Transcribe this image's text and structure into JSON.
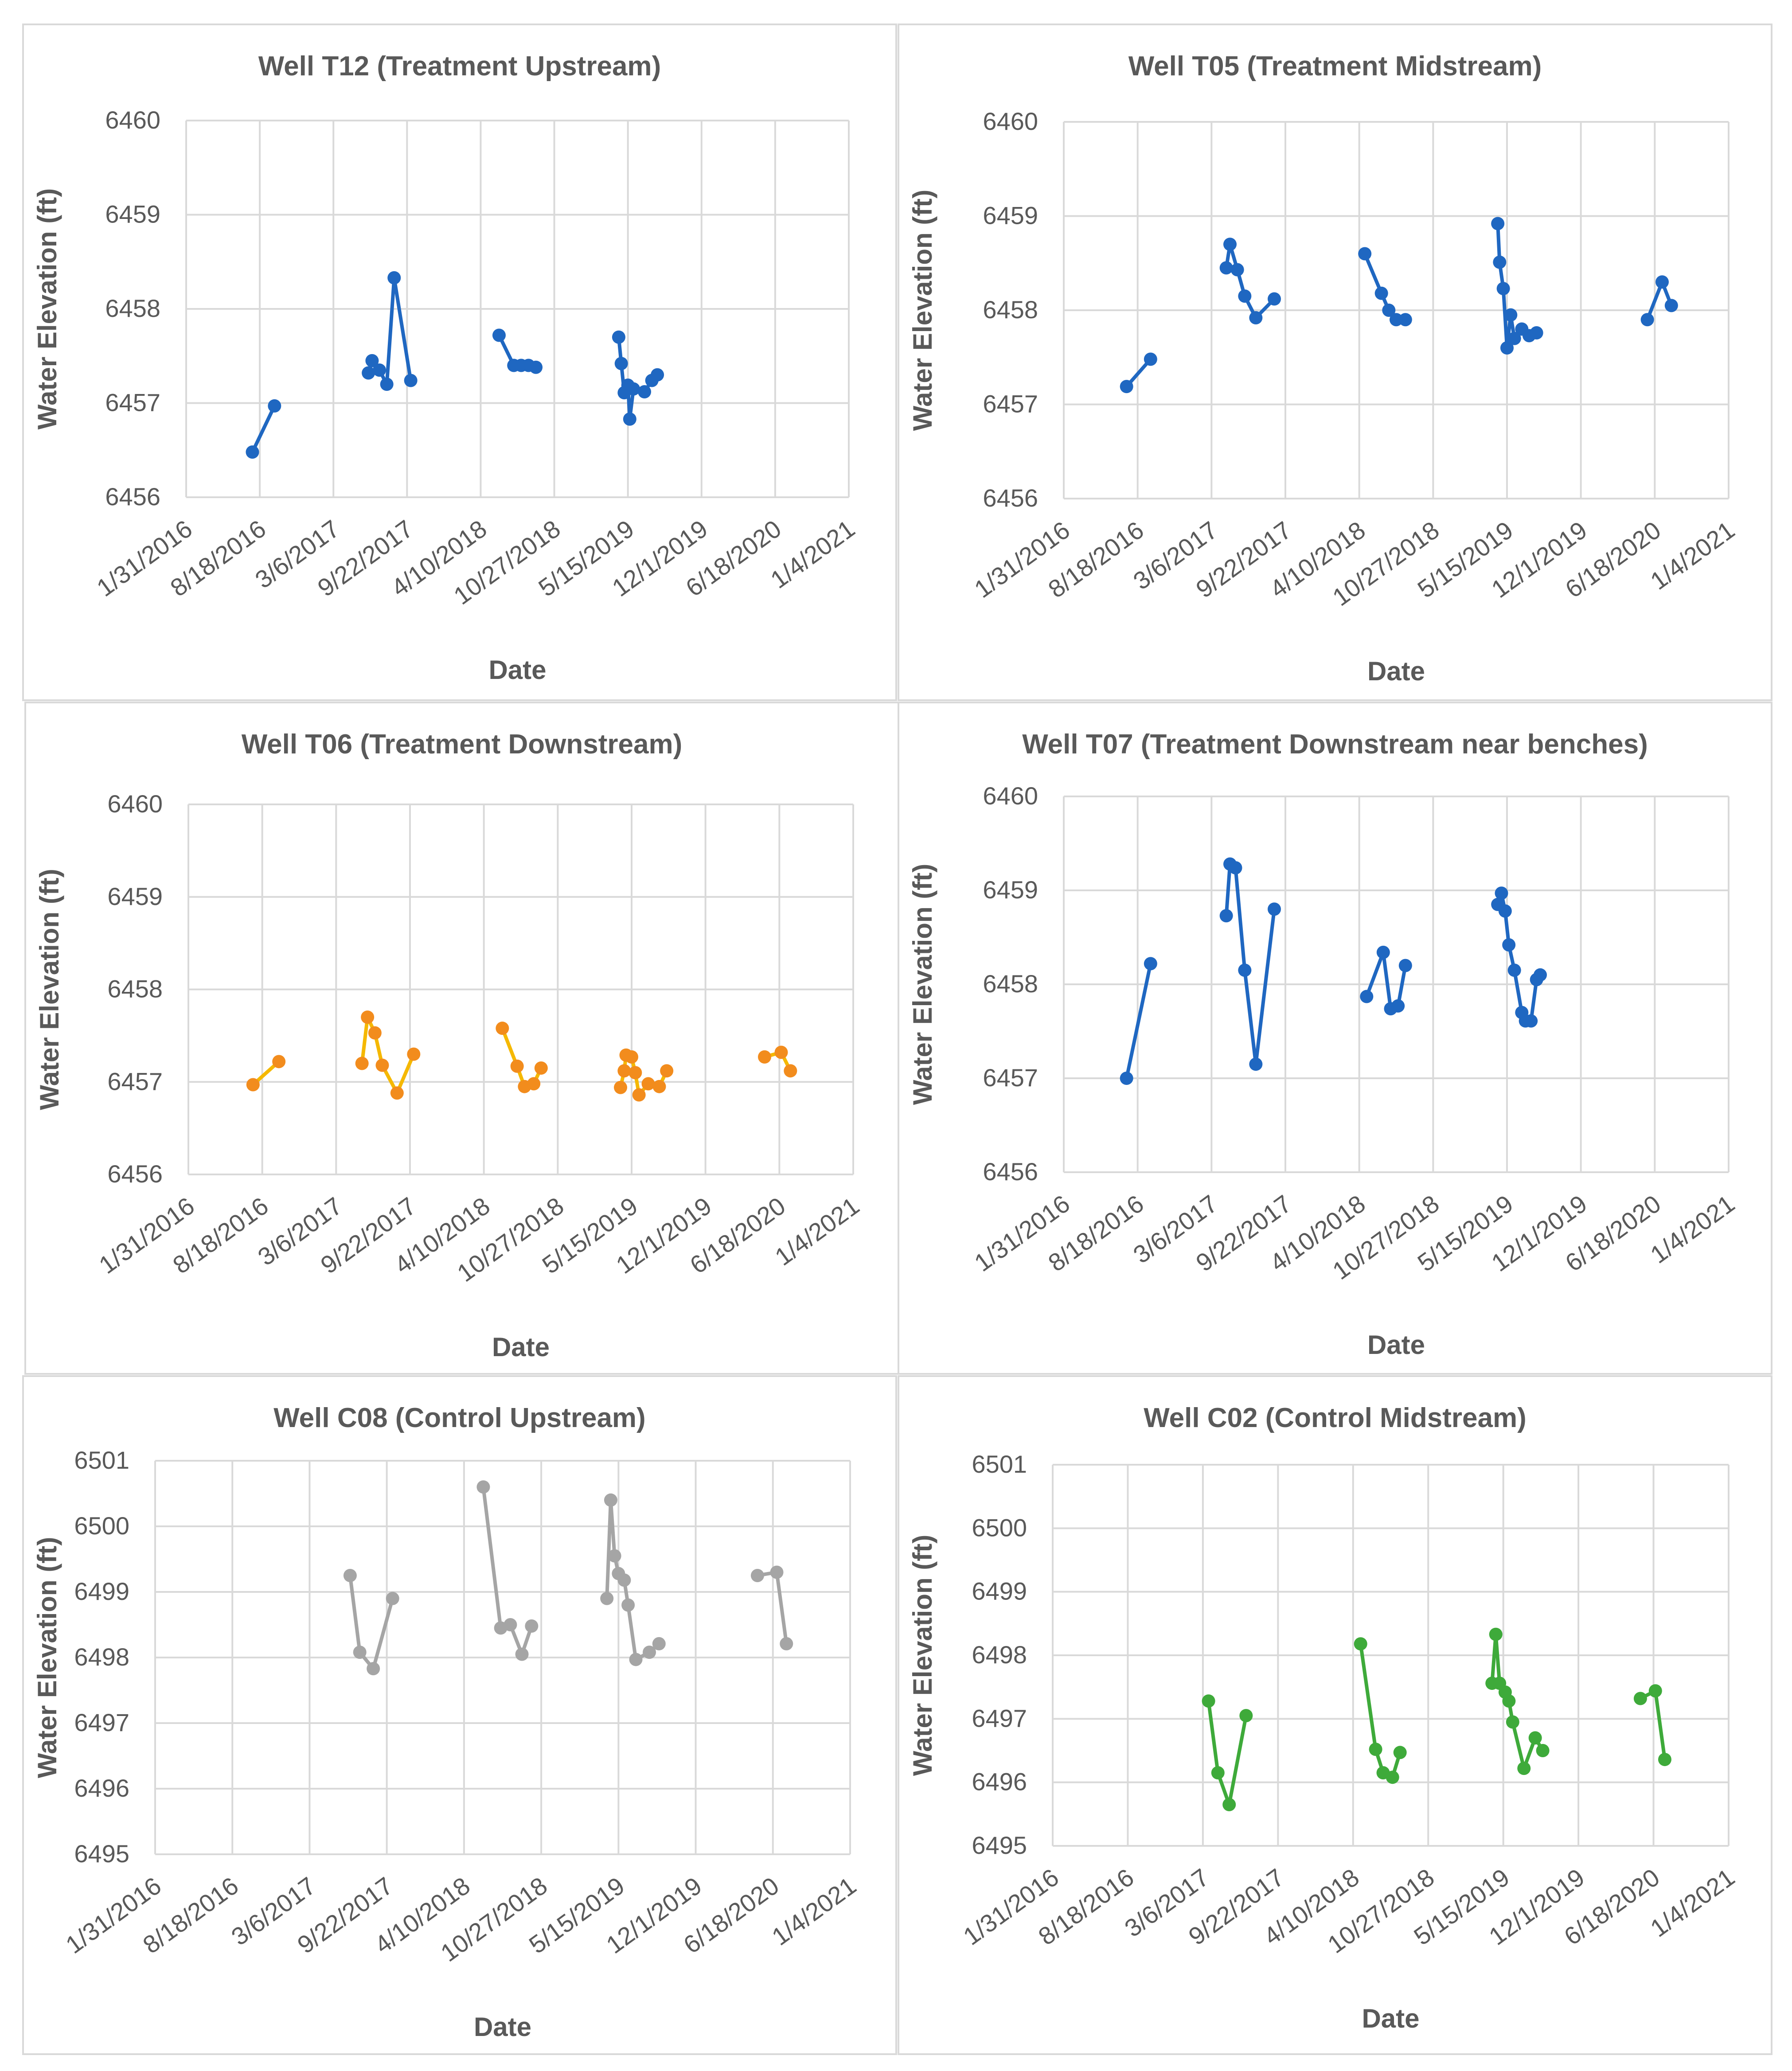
{
  "x_tick_labels": [
    "1/31/2016",
    "8/18/2016",
    "3/6/2017",
    "9/22/2017",
    "4/10/2018",
    "10/27/2018",
    "5/15/2019",
    "12/1/2019",
    "6/18/2020",
    "1/4/2021"
  ],
  "chart_data": [
    {
      "type": "line",
      "title": "Well T12 (Treatment Upstream)",
      "xlabel": "Date",
      "ylabel": "Water Elevation (ft)",
      "xlim": [
        0,
        1800
      ],
      "ylim": [
        6456,
        6460
      ],
      "yticks": [
        6456,
        6457,
        6458,
        6459,
        6460
      ],
      "color": "#1f67c1",
      "segments": [
        [
          [
            180,
            6456.48
          ],
          [
            240,
            6456.97
          ]
        ],
        [
          [
            495,
            6457.32
          ],
          [
            505,
            6457.45
          ],
          [
            525,
            6457.35
          ],
          [
            545,
            6457.2
          ],
          [
            565,
            6458.33
          ],
          [
            610,
            6457.24
          ]
        ],
        [
          [
            850,
            6457.72
          ],
          [
            890,
            6457.4
          ],
          [
            910,
            6457.4
          ],
          [
            930,
            6457.4
          ],
          [
            950,
            6457.38
          ]
        ],
        [
          [
            1175,
            6457.7
          ],
          [
            1182,
            6457.42
          ],
          [
            1190,
            6457.11
          ],
          [
            1200,
            6457.19
          ],
          [
            1205,
            6456.83
          ],
          [
            1215,
            6457.15
          ],
          [
            1245,
            6457.12
          ],
          [
            1265,
            6457.24
          ],
          [
            1280,
            6457.3
          ]
        ]
      ]
    },
    {
      "type": "line",
      "title": "Well T05 (Treatment Midstream)",
      "xlabel": "Date",
      "ylabel": "Water Elevation (ft)",
      "xlim": [
        0,
        1800
      ],
      "ylim": [
        6456,
        6460
      ],
      "yticks": [
        6456,
        6457,
        6458,
        6459,
        6460
      ],
      "color": "#1f67c1",
      "segments": [
        [
          [
            170,
            6457.19
          ],
          [
            235,
            6457.48
          ]
        ],
        [
          [
            440,
            6458.45
          ],
          [
            450,
            6458.7
          ],
          [
            470,
            6458.43
          ],
          [
            490,
            6458.15
          ],
          [
            520,
            6457.92
          ],
          [
            570,
            6458.12
          ]
        ],
        [
          [
            815,
            6458.6
          ],
          [
            860,
            6458.18
          ],
          [
            880,
            6458.0
          ],
          [
            900,
            6457.9
          ],
          [
            925,
            6457.9
          ]
        ],
        [
          [
            1175,
            6458.92
          ],
          [
            1180,
            6458.51
          ],
          [
            1190,
            6458.23
          ],
          [
            1200,
            6457.6
          ],
          [
            1210,
            6457.95
          ],
          [
            1220,
            6457.7
          ],
          [
            1240,
            6457.8
          ],
          [
            1260,
            6457.73
          ],
          [
            1280,
            6457.76
          ]
        ]
      ],
      "extra_segments": [
        [
          [
            1580,
            6457.9
          ],
          [
            1620,
            6458.3
          ],
          [
            1645,
            6458.05
          ]
        ]
      ]
    },
    {
      "type": "line",
      "title": "Well T06 (Treatment Downstream)",
      "xlabel": "Date",
      "ylabel": "Water Elevation (ft)",
      "xlim": [
        0,
        1800
      ],
      "ylim": [
        6456,
        6460
      ],
      "yticks": [
        6456,
        6457,
        6458,
        6459,
        6460
      ],
      "color": "#f5b800",
      "marker": "#f28c1d",
      "segments": [
        [
          [
            175,
            6456.97
          ],
          [
            245,
            6457.22
          ]
        ],
        [
          [
            470,
            6457.2
          ],
          [
            485,
            6457.7
          ],
          [
            505,
            6457.53
          ],
          [
            525,
            6457.18
          ],
          [
            565,
            6456.88
          ],
          [
            610,
            6457.3
          ]
        ],
        [
          [
            850,
            6457.58
          ],
          [
            890,
            6457.17
          ],
          [
            910,
            6456.95
          ],
          [
            935,
            6456.98
          ],
          [
            955,
            6457.15
          ]
        ],
        [
          [
            1170,
            6456.94
          ],
          [
            1180,
            6457.12
          ],
          [
            1185,
            6457.29
          ],
          [
            1200,
            6457.27
          ],
          [
            1210,
            6457.1
          ],
          [
            1220,
            6456.86
          ],
          [
            1245,
            6456.98
          ],
          [
            1275,
            6456.95
          ],
          [
            1295,
            6457.12
          ]
        ],
        [
          [
            1560,
            6457.27
          ],
          [
            1605,
            6457.32
          ],
          [
            1630,
            6457.12
          ]
        ]
      ]
    },
    {
      "type": "line",
      "title": "Well T07 (Treatment Downstream near benches)",
      "xlabel": "Date",
      "ylabel": "Water Elevation (ft)",
      "xlim": [
        0,
        1800
      ],
      "ylim": [
        6456,
        6460
      ],
      "yticks": [
        6456,
        6457,
        6458,
        6459,
        6460
      ],
      "color": "#1f67c1",
      "segments": [
        [
          [
            170,
            6457.0
          ],
          [
            235,
            6458.22
          ]
        ],
        [
          [
            440,
            6458.73
          ],
          [
            450,
            6459.28
          ],
          [
            465,
            6459.24
          ],
          [
            490,
            6458.15
          ],
          [
            520,
            6457.15
          ],
          [
            570,
            6458.8
          ]
        ],
        [
          [
            820,
            6457.87
          ],
          [
            865,
            6458.34
          ],
          [
            885,
            6457.74
          ],
          [
            905,
            6457.77
          ],
          [
            925,
            6458.2
          ]
        ],
        [
          [
            1175,
            6458.85
          ],
          [
            1185,
            6458.97
          ],
          [
            1195,
            6458.78
          ],
          [
            1205,
            6458.42
          ],
          [
            1220,
            6458.15
          ],
          [
            1240,
            6457.7
          ],
          [
            1250,
            6457.61
          ],
          [
            1265,
            6457.61
          ],
          [
            1280,
            6458.05
          ],
          [
            1290,
            6458.1
          ]
        ]
      ]
    },
    {
      "type": "line",
      "title": "Well C08 (Control Upstream)",
      "xlabel": "Date",
      "ylabel": "Water Elevation (ft)",
      "xlim": [
        0,
        1800
      ],
      "ylim": [
        6495,
        6501
      ],
      "yticks": [
        6495,
        6496,
        6497,
        6498,
        6499,
        6500,
        6501
      ],
      "color": "#a5a5a5",
      "segments": [
        [
          [
            505,
            6499.25
          ],
          [
            530,
            6498.08
          ],
          [
            565,
            6497.83
          ],
          [
            615,
            6498.9
          ]
        ],
        [
          [
            850,
            6500.6
          ],
          [
            895,
            6498.45
          ],
          [
            920,
            6498.5
          ],
          [
            950,
            6498.05
          ],
          [
            975,
            6498.48
          ]
        ],
        [
          [
            1170,
            6498.9
          ],
          [
            1180,
            6500.4
          ],
          [
            1190,
            6499.55
          ],
          [
            1200,
            6499.28
          ],
          [
            1215,
            6499.18
          ],
          [
            1225,
            6498.8
          ],
          [
            1245,
            6497.97
          ],
          [
            1280,
            6498.08
          ],
          [
            1305,
            6498.21
          ]
        ],
        [
          [
            1560,
            6499.25
          ],
          [
            1610,
            6499.3
          ],
          [
            1635,
            6498.21
          ]
        ]
      ]
    },
    {
      "type": "line",
      "title": "Well C02 (Control Midstream)",
      "xlabel": "Date",
      "ylabel": "Water Elevation (ft)",
      "xlim": [
        0,
        1800
      ],
      "ylim": [
        6495,
        6501
      ],
      "yticks": [
        6495,
        6496,
        6497,
        6498,
        6499,
        6500,
        6501
      ],
      "color": "#3eaa3a",
      "segments": [
        [
          [
            415,
            6497.28
          ],
          [
            440,
            6496.15
          ],
          [
            470,
            6495.65
          ],
          [
            515,
            6497.05
          ]
        ],
        [
          [
            820,
            6498.18
          ],
          [
            860,
            6496.52
          ],
          [
            880,
            6496.15
          ],
          [
            905,
            6496.08
          ],
          [
            925,
            6496.47
          ]
        ],
        [
          [
            1170,
            6497.56
          ],
          [
            1180,
            6498.33
          ],
          [
            1190,
            6497.56
          ],
          [
            1205,
            6497.42
          ],
          [
            1215,
            6497.28
          ],
          [
            1225,
            6496.95
          ],
          [
            1255,
            6496.22
          ],
          [
            1285,
            6496.7
          ],
          [
            1305,
            6496.5
          ]
        ],
        [
          [
            1565,
            6497.32
          ],
          [
            1605,
            6497.44
          ],
          [
            1630,
            6496.36
          ]
        ]
      ]
    }
  ]
}
